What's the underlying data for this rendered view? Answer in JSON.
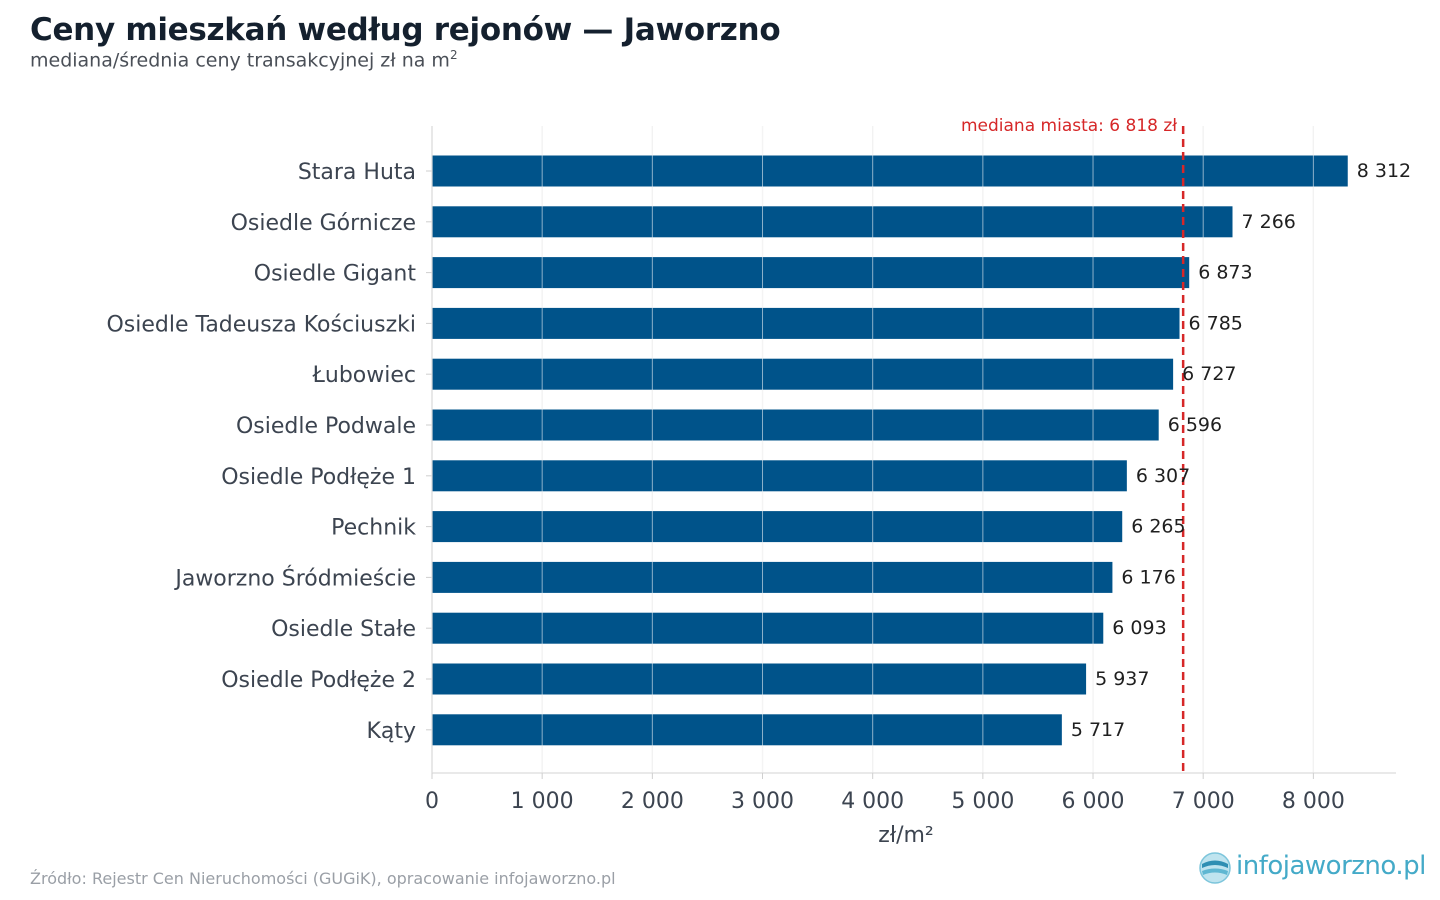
{
  "header": {
    "title": "Ceny mieszkań według rejonów — Jaworzno",
    "subtitle": "mediana/średnia ceny transakcyjnej zł na m",
    "subtitle_sup": "2"
  },
  "chart_data": {
    "type": "bar",
    "orientation": "horizontal",
    "categories": [
      "Stara Huta",
      "Osiedle Górnicze",
      "Osiedle Gigant",
      "Osiedle Tadeusza Kościuszki",
      "Łubowiec",
      "Osiedle Podwale",
      "Osiedle Podłęże 1",
      "Pechnik",
      "Jaworzno Śródmieście",
      "Osiedle Stałe",
      "Osiedle Podłęże 2",
      "Kąty"
    ],
    "values": [
      8312,
      7266,
      6873,
      6785,
      6727,
      6596,
      6307,
      6265,
      6176,
      6093,
      5937,
      5717
    ],
    "value_labels": [
      "8 312",
      "7 266",
      "6 873",
      "6 785",
      "6 727",
      "6 596",
      "6 307",
      "6 265",
      "6 176",
      "6 093",
      "5 937",
      "5 717"
    ],
    "xlabel": "zł/m²",
    "xlim": [
      0,
      8750
    ],
    "xticks": [
      0,
      1000,
      2000,
      3000,
      4000,
      5000,
      6000,
      7000,
      8000
    ],
    "xtick_labels": [
      "0",
      "1 000",
      "2 000",
      "3 000",
      "4 000",
      "5 000",
      "6 000",
      "7 000",
      "8 000"
    ],
    "grid": "vertical",
    "reference_line": {
      "value": 6818,
      "label": "mediana miasta: 6 818 zł"
    },
    "colors": {
      "bar": "#00538a",
      "reference": "#d62728",
      "grid": "#e6e6e6"
    }
  },
  "footer": {
    "source": "Źródło: Rejestr Cen Nieruchomości (GUGiK), opracowanie infojaworzno.pl",
    "logo_text": "infojaworzno.pl"
  }
}
